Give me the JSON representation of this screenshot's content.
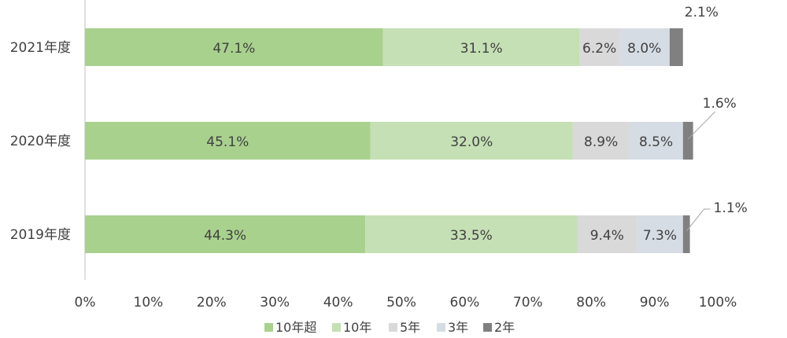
{
  "chart_data": {
    "type": "bar",
    "orientation": "horizontal",
    "stacked": true,
    "categories": [
      "2021年度",
      "2020年度",
      "2019年度"
    ],
    "series": [
      {
        "name": "10年超",
        "color": "#a9d18e",
        "values": [
          47.1,
          45.1,
          44.3
        ],
        "labels": [
          "47.1%",
          "45.1%",
          "44.3%"
        ]
      },
      {
        "name": "10年",
        "color": "#c5e0b4",
        "values": [
          31.1,
          32.0,
          33.5
        ],
        "labels": [
          "31.1%",
          "32.0%",
          "33.5%"
        ]
      },
      {
        "name": "5年",
        "color": "#d9d9d9",
        "values": [
          6.2,
          8.9,
          9.4
        ],
        "labels": [
          "6.2%",
          "8.9%",
          "9.4%"
        ]
      },
      {
        "name": "3年",
        "color": "#d6dce4",
        "values": [
          8.0,
          8.5,
          7.3
        ],
        "labels": [
          "8.0%",
          "8.5%",
          "7.3%"
        ]
      },
      {
        "name": "2年",
        "color": "#808080",
        "values": [
          2.1,
          1.6,
          1.1
        ],
        "labels": [
          "2.1%",
          "1.6%",
          "1.1%"
        ]
      }
    ],
    "xlim": [
      0,
      100
    ],
    "x_ticks": [
      "0%",
      "10%",
      "20%",
      "30%",
      "40%",
      "50%",
      "60%",
      "70%",
      "80%",
      "90%",
      "100%"
    ],
    "grid": false,
    "legend_position": "bottom"
  }
}
